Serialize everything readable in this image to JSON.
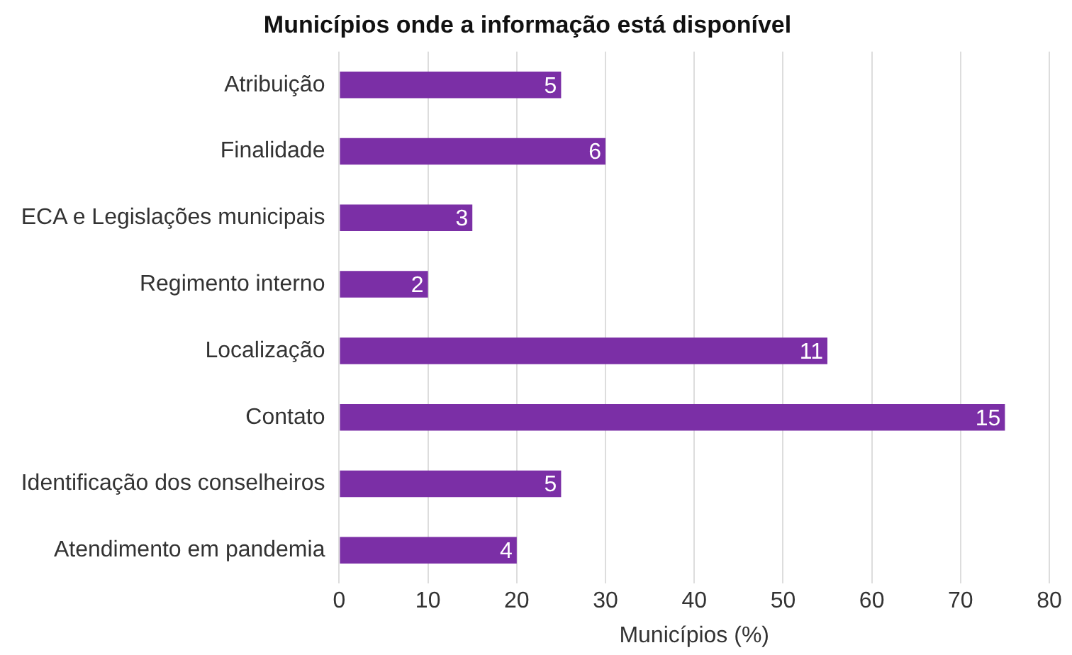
{
  "chart_data": {
    "type": "bar",
    "orientation": "horizontal",
    "title": "Municípios onde a informação está disponível",
    "xlabel": "Municípios (%)",
    "categories": [
      "Atribuição",
      "Finalidade",
      "ECA e Legislações municipais",
      "Regimento interno",
      "Localização",
      "Contato",
      "Identificação dos conselheiros",
      "Atendimento em pandemia"
    ],
    "values": [
      25,
      30,
      15,
      10,
      55,
      75,
      25,
      20
    ],
    "annotations": [
      {
        "text": "5",
        "x": 25,
        "y": "Atribuição"
      },
      {
        "text": "6",
        "x": 30,
        "y": "Finalidade"
      },
      {
        "text": "3",
        "x": 15,
        "y": "ECA e Legislações municipais"
      },
      {
        "text": "2",
        "x": 10,
        "y": "Regimento interno"
      },
      {
        "text": "11",
        "x": 55,
        "y": "Localização"
      },
      {
        "text": "15",
        "x": 75,
        "y": "Contato"
      },
      {
        "text": "5",
        "x": 25,
        "y": "Identificação dos conselheiros"
      },
      {
        "text": "4",
        "x": 20,
        "y": "Atendimento em pandemia"
      }
    ],
    "color": "#7b2fa6",
    "xlim": [
      0,
      80
    ],
    "xticks": [
      0,
      10,
      20,
      30,
      40,
      50,
      60,
      70,
      80
    ],
    "grid": "x",
    "legend": false
  }
}
